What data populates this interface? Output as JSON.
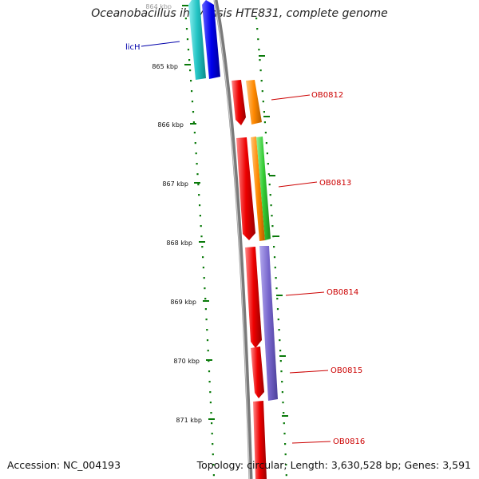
{
  "title": "Oceanobacillus iheyensis HTE831, complete genome",
  "accession": "Accession: NC_004193",
  "topology": "Topology: circular; Length: 3,630,528 bp; Genes: 3,591",
  "colors": {
    "backbone": "#7a7a7a",
    "tick": "#0a7a0a",
    "cyan": "#22c4c4",
    "blue": "#0000ee",
    "red": "#ee0000",
    "orange": "#ff8800",
    "green": "#33cc33",
    "purple": "#7766cc"
  },
  "ticks": [
    {
      "label": "864 kbp"
    },
    {
      "label": "865 kbp"
    },
    {
      "label": "866 kbp"
    },
    {
      "label": "867 kbp"
    },
    {
      "label": "868 kbp"
    },
    {
      "label": "869 kbp"
    },
    {
      "label": "870 kbp"
    },
    {
      "label": "871 kbp"
    }
  ],
  "gene_labels": [
    {
      "name": "licH",
      "color": "blue"
    },
    {
      "name": "OB0812",
      "color": "red"
    },
    {
      "name": "OB0813",
      "color": "red"
    },
    {
      "name": "OB0814",
      "color": "red"
    },
    {
      "name": "OB0815",
      "color": "red"
    },
    {
      "name": "OB0816",
      "color": "red"
    }
  ]
}
